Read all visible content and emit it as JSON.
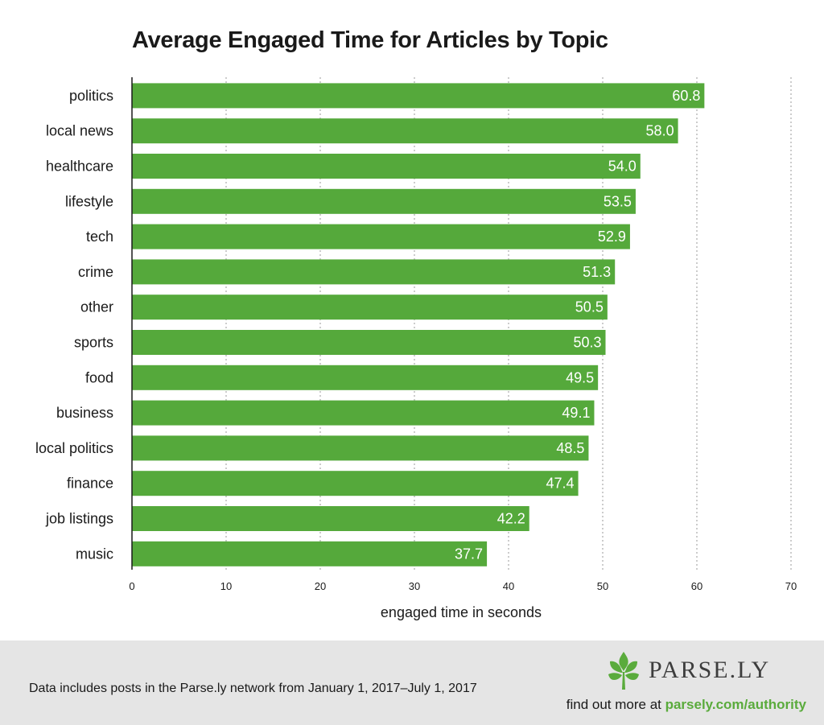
{
  "chart_data": {
    "type": "bar",
    "orientation": "horizontal",
    "title": "Average Engaged Time for Articles by Topic",
    "xlabel": "engaged time in seconds",
    "ylabel": "",
    "xlim": [
      0,
      70
    ],
    "ticks": [
      "0",
      "10",
      "20",
      "30",
      "40",
      "50",
      "60",
      "70"
    ],
    "grid": true,
    "bar_color": "#55a93b",
    "categories": [
      "politics",
      "local news",
      "healthcare",
      "lifestyle",
      "tech",
      "crime",
      "other",
      "sports",
      "food",
      "business",
      "local politics",
      "finance",
      "job listings",
      "music"
    ],
    "values": [
      60.8,
      58.0,
      54.0,
      53.5,
      52.9,
      51.3,
      50.5,
      50.3,
      49.5,
      49.1,
      48.5,
      47.4,
      42.2,
      37.7
    ],
    "value_labels": [
      "60.8",
      "58.0",
      "54.0",
      "53.5",
      "52.9",
      "51.3",
      "50.5",
      "50.3",
      "49.5",
      "49.1",
      "48.5",
      "47.4",
      "42.2",
      "37.7"
    ]
  },
  "footer": {
    "note": "Data includes posts in the Parse.ly network from January 1, 2017–July 1, 2017",
    "brand_name": "PARSE.LY",
    "brand_logo_icon": "parsley-leaf-icon",
    "cta_prefix": "find out more at ",
    "cta_link": "parsely.com/authority",
    "background_color": "#e5e5e5",
    "link_color": "#5aab3c"
  }
}
